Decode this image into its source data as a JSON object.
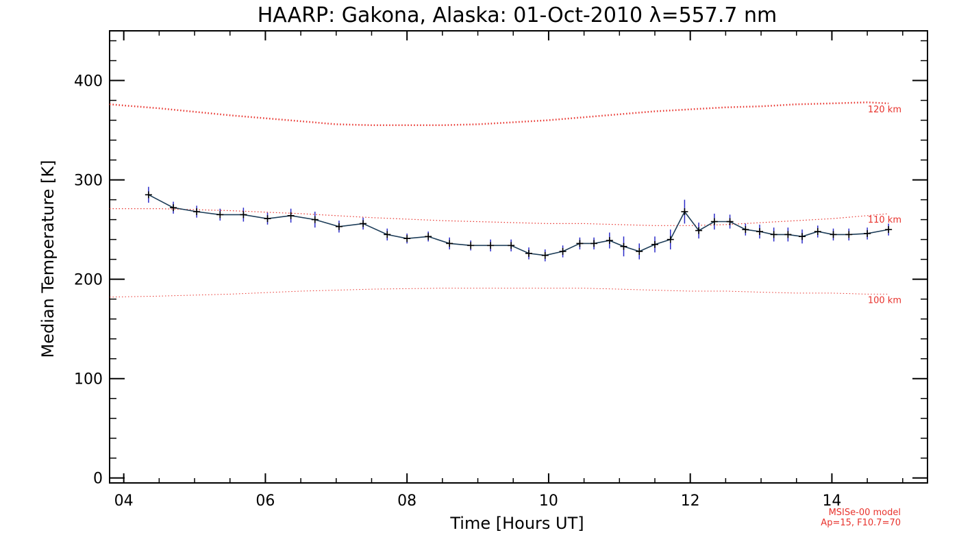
{
  "chart_data": {
    "type": "line",
    "title": "HAARP: Gakona,  Alaska: 01-Oct-2010 λ=557.7 nm",
    "xlabel": "Time [Hours UT]",
    "ylabel": "Median Temperature [K]",
    "xlim": [
      3.8,
      15.35
    ],
    "ylim": [
      -5,
      450
    ],
    "x_ticks": [
      4,
      6,
      8,
      10,
      12,
      14
    ],
    "x_tick_labels": [
      "04",
      "06",
      "08",
      "10",
      "12",
      "14"
    ],
    "y_ticks": [
      0,
      100,
      200,
      300,
      400
    ],
    "y_tick_labels": [
      "0",
      "100",
      "200",
      "300",
      "400"
    ],
    "grid": false,
    "colors": {
      "measurement_line": "#1c3c58",
      "error_bars": "#2a2ac8",
      "model_lines": "#e8322c",
      "axes": "#000000"
    },
    "series": [
      {
        "x": [
          4.35,
          4.7,
          5.03,
          5.36,
          5.69,
          6.03,
          6.36,
          6.7,
          7.04,
          7.38,
          7.72,
          8.0,
          8.3,
          8.6,
          8.9,
          9.18,
          9.47,
          9.72,
          9.95,
          10.2,
          10.44,
          10.64,
          10.86,
          11.06,
          11.28,
          11.5,
          11.72,
          11.92,
          12.12,
          12.34,
          12.56,
          12.78,
          12.98,
          13.18,
          13.38,
          13.58,
          13.8,
          14.02,
          14.24,
          14.5,
          14.8
        ],
        "y": [
          285,
          272,
          268,
          265,
          265,
          261,
          264,
          260,
          253,
          256,
          245,
          241,
          243,
          236,
          234,
          234,
          234,
          226,
          224,
          228,
          236,
          236,
          239,
          233,
          228,
          235,
          240,
          268,
          249,
          258,
          258,
          250,
          248,
          245,
          245,
          243,
          248,
          245,
          245,
          246,
          250
        ],
        "y_err": [
          8,
          6,
          6,
          6,
          7,
          6,
          7,
          8,
          6,
          6,
          6,
          5,
          5,
          6,
          5,
          6,
          6,
          6,
          6,
          6,
          6,
          6,
          8,
          10,
          8,
          8,
          10,
          12,
          8,
          8,
          7,
          6,
          7,
          7,
          7,
          7,
          6,
          6,
          6,
          6,
          6
        ]
      }
    ],
    "model_curves": [
      {
        "name": "120 km",
        "x": [
          3.8,
          4.5,
          5.5,
          6.5,
          7.0,
          7.5,
          8.0,
          8.5,
          9.0,
          9.5,
          10.0,
          10.5,
          11.0,
          11.5,
          12.0,
          12.5,
          13.0,
          13.5,
          14.0,
          14.5,
          14.8
        ],
        "y": [
          376,
          372,
          365,
          359,
          356,
          355,
          355,
          355,
          356,
          358,
          360,
          363,
          366,
          369,
          371,
          373,
          374,
          376,
          377,
          378,
          377
        ]
      },
      {
        "name": "110 km",
        "x": [
          3.8,
          4.5,
          5.5,
          6.5,
          7.5,
          8.5,
          9.5,
          10.0,
          10.5,
          11.0,
          11.5,
          12.0,
          12.5,
          13.0,
          13.5,
          14.0,
          14.5,
          14.8
        ],
        "y": [
          271,
          271,
          269,
          266,
          262,
          259,
          257,
          256,
          256,
          255,
          254,
          254,
          255,
          257,
          259,
          261,
          264,
          266
        ]
      },
      {
        "name": "100 km",
        "x": [
          3.8,
          4.5,
          5.5,
          6.5,
          7.5,
          8.5,
          9.5,
          10.0,
          10.5,
          11.0,
          11.5,
          12.0,
          12.5,
          13.0,
          13.5,
          14.0,
          14.5,
          14.8
        ],
        "y": [
          182,
          183,
          185,
          188,
          190,
          191,
          191,
          191,
          191,
          190,
          189,
          188,
          188,
          187,
          186,
          186,
          185,
          185
        ]
      }
    ],
    "model_note": [
      "MSISe-00 model",
      "Ap=15, F10.7=70"
    ]
  }
}
